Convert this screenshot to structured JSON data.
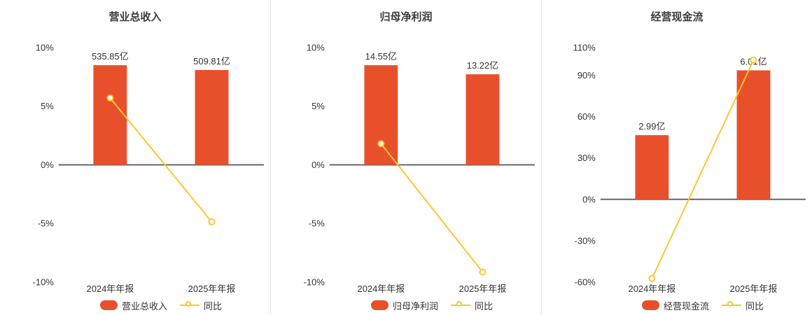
{
  "colors": {
    "background": "#ffffff",
    "bar": "#e8502b",
    "line": "#fdc530",
    "marker_fill": "#ffffff",
    "axis_line": "#666666",
    "text": "#333333",
    "title": "#3d3d3d",
    "divider": "#e4e4e4"
  },
  "chart_data": [
    {
      "type": "bar",
      "title": "营业总收入",
      "categories": [
        "2024年年报",
        "2025年年报"
      ],
      "ylim": [
        -10,
        10
      ],
      "y_ticks": [
        10,
        5,
        0,
        -5,
        -10
      ],
      "y_tick_labels": [
        "10%",
        "5%",
        "0%",
        "-5%",
        "-10%"
      ],
      "bar_series": {
        "name": "营业总收入",
        "unit": "亿",
        "values": [
          535.85,
          509.81
        ],
        "labels": [
          "535.85亿",
          "509.81亿"
        ]
      },
      "line_series": {
        "name": "同比",
        "unit": "%",
        "values": [
          5.7,
          -4.86
        ]
      },
      "legend_position": "bottom",
      "grid": false
    },
    {
      "type": "bar",
      "title": "归母净利润",
      "categories": [
        "2024年年报",
        "2025年年报"
      ],
      "ylim": [
        -10,
        10
      ],
      "y_ticks": [
        10,
        5,
        0,
        -5,
        -10
      ],
      "y_tick_labels": [
        "10%",
        "5%",
        "0%",
        "-5%",
        "-10%"
      ],
      "bar_series": {
        "name": "归母净利润",
        "unit": "亿",
        "values": [
          14.55,
          13.22
        ],
        "labels": [
          "14.55亿",
          "13.22亿"
        ]
      },
      "line_series": {
        "name": "同比",
        "unit": "%",
        "values": [
          1.8,
          -9.14
        ]
      },
      "legend_position": "bottom",
      "grid": false
    },
    {
      "type": "bar",
      "title": "经营现金流",
      "categories": [
        "2024年年报",
        "2025年年报"
      ],
      "ylim": [
        -60,
        110
      ],
      "y_ticks": [
        110,
        90,
        60,
        30,
        0,
        -30,
        -60
      ],
      "y_tick_labels": [
        "110%",
        "90%",
        "60%",
        "30%",
        "0%",
        "-30%",
        "-60%"
      ],
      "bar_series": {
        "name": "经营现金流",
        "unit": "亿",
        "values": [
          2.99,
          6.01
        ],
        "labels": [
          "2.99亿",
          "6.01亿"
        ]
      },
      "line_series": {
        "name": "同比",
        "unit": "%",
        "values": [
          -57.4,
          101.0
        ]
      },
      "legend_position": "bottom",
      "grid": false
    }
  ]
}
